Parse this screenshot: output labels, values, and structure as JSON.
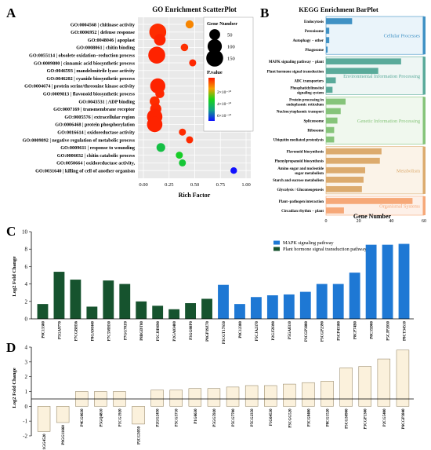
{
  "chart_data": [
    {
      "panel_label": "A",
      "type": "scatter",
      "title": "GO Enrichment ScatterPlot",
      "xlabel": "Rich Factor",
      "xlim": [
        0,
        1
      ],
      "xticks": [
        "0.00",
        "0.25",
        "0.50",
        "0.75",
        "1.00"
      ],
      "categories": [
        "GO:0004568 | chitinase activity",
        "GO:0006952 | defense response",
        "GO:0048046 | apoplast",
        "GO:0008061 | chitin binding",
        "GO:0055114 | obsolete oxidation−reduction process",
        "GO:0009800 | cinnamic acid biosynthetic process",
        "GO:0046593 | mandelonitrile lyase activity",
        "GO:0046202 | cyanide biosynthetic process",
        "GO:0004674 | protein serine/threonine kinase activity",
        "GO:0009813 | flavonoid biosynthetic process",
        "GO:0043531 | ADP binding",
        "GO:0007169 | transmembrane receptor",
        "GO:0005576 | extracellular region",
        "GO:0006468 | protein phosphorylation",
        "GO:0016614 | oxidoreductase activity",
        "GO:0009892 | negative regulation of metabolic process",
        "GO:0009611 | response to wounding",
        "GO:0006032 | chitin catabolic process",
        "GO:0050664 | oxidoreductase activity,",
        "GO:0031640 | killing of cell of another organism"
      ],
      "points": [
        {
          "x": 0.45,
          "count": 22,
          "p": 1.2e-10
        },
        {
          "x": 0.14,
          "count": 150,
          "p": 2e-11
        },
        {
          "x": 0.16,
          "count": 60,
          "p": 1e-11
        },
        {
          "x": 0.4,
          "count": 18,
          "p": 2.5e-11
        },
        {
          "x": 0.13,
          "count": 150,
          "p": 1e-11
        },
        {
          "x": 0.48,
          "count": 15,
          "p": 1.5e-11
        },
        {
          "x": 0.9,
          "count": 12,
          "p": 1.2e-11
        },
        {
          "x": 0.9,
          "count": 12,
          "p": 1.2e-11
        },
        {
          "x": 0.14,
          "count": 115,
          "p": 1e-11
        },
        {
          "x": 0.16,
          "count": 30,
          "p": 1.5e-11
        },
        {
          "x": 0.11,
          "count": 40,
          "p": 2e-11
        },
        {
          "x": 0.12,
          "count": 55,
          "p": 1.5e-11
        },
        {
          "x": 0.11,
          "count": 120,
          "p": 1e-11
        },
        {
          "x": 0.11,
          "count": 120,
          "p": 1e-11
        },
        {
          "x": 0.38,
          "count": 15,
          "p": 2e-11
        },
        {
          "x": 0.45,
          "count": 15,
          "p": 1.8e-11
        },
        {
          "x": 0.17,
          "count": 28,
          "p": 3.6e-10
        },
        {
          "x": 0.35,
          "count": 15,
          "p": 3.2e-10
        },
        {
          "x": 0.38,
          "count": 15,
          "p": 3.4e-10
        },
        {
          "x": 0.88,
          "count": 12,
          "p": 6e-10
        }
      ],
      "legend_size_title": "Gene Number",
      "legend_size_values": [
        50,
        100,
        150
      ],
      "legend_size_labels": [
        "50",
        "100",
        "150"
      ],
      "legend_color_title": "P.value",
      "legend_color_labels": [
        "2×10⁻¹⁰",
        "4×10⁻¹⁰",
        "6×10⁻¹⁰"
      ],
      "legend_placement": "right",
      "colors": {
        "low": "#ff1a00",
        "mid": "#18d418",
        "high": "#1010ff"
      }
    },
    {
      "panel_label": "B",
      "type": "bar",
      "orientation": "horizontal",
      "title": "KEGG Enrichment BarPlot",
      "xlabel": "Gene Number",
      "xlim": [
        0,
        60
      ],
      "xticks": [
        "0",
        "20",
        "40",
        "60"
      ],
      "categories": [
        "Endocytosis",
        "Peroxisome",
        "Autophagy − other",
        "Phagosome",
        "MAPK signaling pathway − plant",
        "Plant hormone signal transduction",
        "ABC transporters",
        "Phosphatidylinositol signaling system",
        "Protein processing in endoplasmic reticulum",
        "Nucleocytoplasmic transport",
        "Spliceosome",
        "Ribosome",
        "Ubiquitin mediated proteolysis",
        "Flavonoid biosynthesis",
        "Phenylpropanoid biosynthesis",
        "Amino sugar and nucleotide sugar metabolism",
        "Starch and sucrose metabolism",
        "Glycolysis / Gluconeogenesis",
        "Plant−pathogen interaction",
        "Circadian rhythm − plant"
      ],
      "values": [
        16,
        2,
        2,
        1,
        46,
        32,
        6,
        4,
        12,
        9,
        7,
        5,
        5,
        34,
        33,
        24,
        23,
        22,
        53,
        11
      ],
      "groups": [
        {
          "name": "Cellular Processes",
          "start": 0,
          "end": 3,
          "color": "#3f91c4",
          "bg": "#eaf4fa"
        },
        {
          "name": "Environmental Information Processing",
          "start": 4,
          "end": 7,
          "color": "#5aaa9a",
          "bg": "#eef6f4"
        },
        {
          "name": "Genetic Information Processing",
          "start": 8,
          "end": 12,
          "color": "#86c47a",
          "bg": "#f0f8ee"
        },
        {
          "name": "Metabolism",
          "start": 13,
          "end": 17,
          "color": "#dcab6e",
          "bg": "#fbf3e8"
        },
        {
          "name": "Organismal Systems",
          "start": 18,
          "end": 19,
          "color": "#f6a878",
          "bg": "#fdf0e8"
        }
      ]
    },
    {
      "panel_label": "C",
      "type": "bar",
      "ylabel": "Log2 Fold Change",
      "ylim": [
        0,
        10
      ],
      "yticks": [
        "0",
        "2",
        "4",
        "6",
        "8",
        "10"
      ],
      "categories": [
        "P0C13380",
        "P5GA9770",
        "P7CGBH36",
        "P8GAM440",
        "P7C5MH30",
        "P7GG70Z0",
        "P8BGDT80",
        "P5CJHM90",
        "P2GA03400",
        "P3GG80P0",
        "P8GP39Z70",
        "P3CGT17S50",
        "P0C12380",
        "P5CJA2370",
        "P2GJ59390",
        "P5GA8310",
        "P3CGP3880",
        "P3CGP2390",
        "P3CP43380",
        "P8CP74B0",
        "P8C35D80",
        "P5CJP2030",
        "P8CT34510"
      ],
      "values": [
        1.7,
        5.4,
        4.5,
        1.4,
        4.4,
        4.0,
        2.0,
        1.5,
        1.1,
        1.8,
        2.3,
        3.9,
        1.7,
        2.5,
        2.7,
        2.8,
        3.1,
        4.0,
        4.0,
        5.3,
        8.5,
        8.5,
        8.6
      ],
      "series": [
        {
          "name": "MAPK signaling pathway",
          "start": 11,
          "end": 22,
          "color": "#1e78d4"
        },
        {
          "name": "Plant hormone signal transduction pathway",
          "start": 0,
          "end": 10,
          "color": "#16532e"
        }
      ],
      "legend_placement": "top-right"
    },
    {
      "panel_label": "D",
      "type": "bar",
      "ylabel": "Log2 Fold Change",
      "ylim": [
        -2,
        4
      ],
      "yticks": [
        "-2",
        "-1",
        "0",
        "1",
        "2",
        "3",
        "4"
      ],
      "categories": [
        "P1GG4520",
        "P9GG11660",
        "P4CG0630",
        "P5GQ4810",
        "P1CG1920",
        "P2CG3050",
        "P2GG2450",
        "P5CG5710",
        "P1G6630",
        "P5GG5920",
        "P5CG7700",
        "P5CG2350",
        "P1G64530",
        "P3CGG520",
        "P3CG8400",
        "P8CG1520",
        "P3CG30900",
        "P3CGP1300",
        "P2CG5400",
        "P6CGP3840"
      ],
      "values": [
        -1.7,
        -1.1,
        1.0,
        1.0,
        1.0,
        -1.2,
        1.1,
        1.1,
        1.2,
        1.2,
        1.3,
        1.4,
        1.4,
        1.5,
        1.6,
        1.7,
        2.6,
        2.7,
        3.2,
        3.8
      ],
      "colors": {
        "bar": "#fbf1dc",
        "edge": "#8a7a58"
      }
    }
  ]
}
